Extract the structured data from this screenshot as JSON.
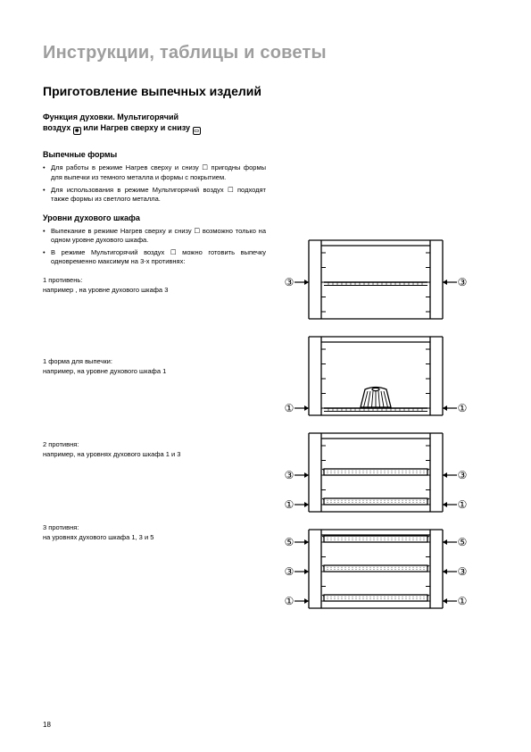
{
  "page": {
    "title": "Инструкции, таблицы и советы",
    "number": "18"
  },
  "section": {
    "title": "Приготовление выпечных изделий"
  },
  "oven_function": {
    "line1_a": "Функция духовки. Мультигорячий",
    "line1_b": "воздух",
    "line1_c": "или Нагрев сверху и снизу"
  },
  "forms": {
    "heading": "Выпечные формы",
    "items": [
      "Для работы в режиме Нагрев сверху и снизу ☐ пригодны формы для выпечки из темного металла и формы с покрытием.",
      "Для использования в режиме Мультигорячий воздух ☐ подходят также формы из светлого металла."
    ]
  },
  "levels": {
    "heading": "Уровни духового шкафа",
    "items": [
      "Выпекание в режиме Нагрев сверху и снизу ☐ возможно только на одном уровне духового шкафа.",
      "В режиме Мультигорячий воздух ☐ можно готовить выпечку одновременно максимум на 3-х противнях:"
    ]
  },
  "examples": [
    {
      "label": "1 противень:",
      "detail": "например , на уровне духового шкафа 3"
    },
    {
      "label": "1 форма для выпечки:",
      "detail": "например, на уровне духового шкафа 1"
    },
    {
      "label": "2 противня:",
      "detail": "например, на уровнях духового шкафа 1 и 3"
    },
    {
      "label": "3 противня:",
      "detail": "на уровнях духового шкафа 1, 3 и 5"
    }
  ],
  "diagrams": [
    {
      "type": "oven-cross-section",
      "trays": [
        {
          "level": 3,
          "kind": "rack"
        }
      ],
      "labels_left": [
        "③"
      ],
      "labels_right": [
        "③"
      ]
    },
    {
      "type": "oven-cross-section",
      "trays": [
        {
          "level": 1,
          "kind": "rack-with-bundt"
        }
      ],
      "labels_left": [
        "①"
      ],
      "labels_right": [
        "①"
      ]
    },
    {
      "type": "oven-cross-section",
      "trays": [
        {
          "level": 3,
          "kind": "pan"
        },
        {
          "level": 1,
          "kind": "pan"
        }
      ],
      "labels_left": [
        "③",
        "①"
      ],
      "labels_right": [
        "③",
        "①"
      ]
    },
    {
      "type": "oven-cross-section",
      "trays": [
        {
          "level": 5,
          "kind": "pan"
        },
        {
          "level": 3,
          "kind": "pan"
        },
        {
          "level": 1,
          "kind": "pan"
        }
      ],
      "labels_left": [
        "⑤",
        "③",
        "①"
      ],
      "labels_right": [
        "⑤",
        "③",
        "①"
      ]
    }
  ],
  "style": {
    "page_bg": "#ffffff",
    "title_color": "#9e9e9e",
    "text_color": "#000000",
    "stroke_color": "#000000",
    "stroke_width": 1.3,
    "diagram_width": 210,
    "diagram_height": 100,
    "font_body_pt": 7.5,
    "font_title_pt": 20,
    "font_section_pt": 14,
    "font_sub_pt": 9
  }
}
